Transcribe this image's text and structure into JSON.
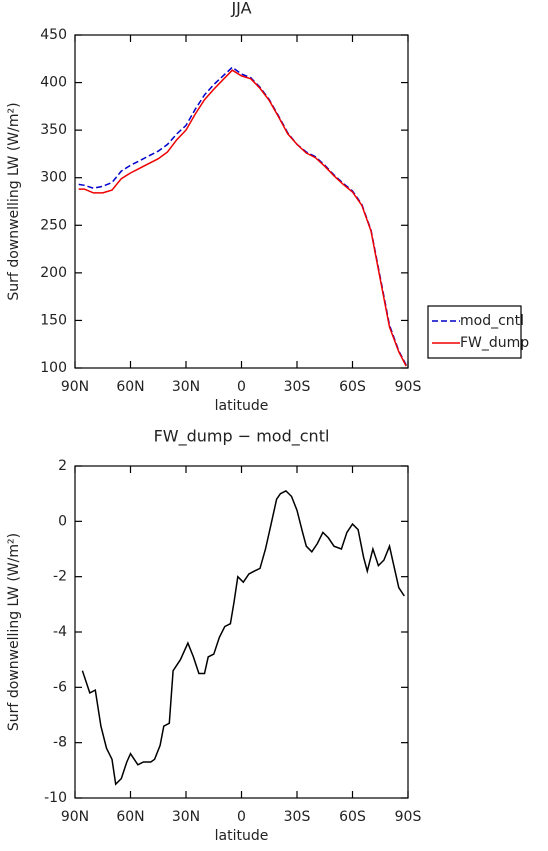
{
  "chart_data": [
    {
      "type": "line",
      "title": "JJA",
      "xlabel": "latitude",
      "ylabel": "Surf downwelling LW (W/m²)",
      "x": [
        88,
        85,
        80,
        75,
        70,
        65,
        60,
        55,
        50,
        45,
        40,
        35,
        30,
        25,
        20,
        15,
        10,
        5,
        0,
        -5,
        -10,
        -15,
        -20,
        -25,
        -30,
        -35,
        -40,
        -45,
        -50,
        -55,
        -60,
        -65,
        -70,
        -75,
        -80,
        -85,
        -89
      ],
      "series": [
        {
          "name": "mod_cntl",
          "color": "#0000cc",
          "linestyle": "dashed",
          "values": [
            293,
            292,
            289,
            291,
            295,
            307,
            313,
            318,
            323,
            328,
            335,
            346,
            355,
            372,
            387,
            398,
            407,
            416,
            409,
            405,
            395,
            382,
            365,
            347,
            335,
            327,
            322,
            313,
            303,
            294,
            286,
            272,
            245,
            195,
            145,
            118,
            103
          ]
        },
        {
          "name": "FW_dump",
          "color": "#ee0000",
          "linestyle": "solid",
          "values": [
            288,
            288,
            284,
            284,
            287,
            299,
            305,
            310,
            315,
            320,
            327,
            340,
            350,
            367,
            382,
            393,
            403,
            413,
            407,
            404,
            394,
            381,
            364,
            346,
            335,
            326,
            321,
            312,
            302,
            293,
            285,
            271,
            244,
            193,
            143,
            117,
            102
          ]
        }
      ],
      "xlim": [
        90,
        -90
      ],
      "xticks": [
        {
          "value": 90,
          "label": "90N"
        },
        {
          "value": 60,
          "label": "60N"
        },
        {
          "value": 30,
          "label": "30N"
        },
        0,
        {
          "value": -30,
          "label": "30S"
        },
        {
          "value": -60,
          "label": "60S"
        },
        {
          "value": -90,
          "label": "90S"
        }
      ],
      "ylim": [
        100,
        450
      ],
      "yticks": [
        100,
        150,
        200,
        250,
        300,
        350,
        400,
        450
      ],
      "legend": "right"
    },
    {
      "type": "line",
      "title": "FW_dump − mod_cntl",
      "xlabel": "latitude",
      "ylabel": "Surf downwelling LW (W/m²)",
      "x": [
        86,
        82,
        79,
        76,
        73,
        70,
        68,
        65,
        62,
        60,
        56,
        53,
        49,
        47,
        44,
        42,
        39,
        37,
        33,
        29,
        26,
        23,
        20,
        18,
        15,
        12,
        9,
        6,
        4,
        2,
        -1,
        -4,
        -7,
        -10,
        -13,
        -16,
        -19,
        -21,
        -24,
        -27,
        -30,
        -33,
        -35,
        -38,
        -41,
        -44,
        -47,
        -50,
        -54,
        -57,
        -60,
        -63,
        -66,
        -68,
        -71,
        -74,
        -77,
        -80,
        -82,
        -85,
        -88
      ],
      "series": [
        {
          "name": "FW_dump − mod_cntl",
          "color": "#000000",
          "linestyle": "solid",
          "values": [
            -5.4,
            -6.2,
            -6.1,
            -7.4,
            -8.2,
            -8.6,
            -9.5,
            -9.3,
            -8.7,
            -8.4,
            -8.8,
            -8.7,
            -8.7,
            -8.6,
            -8.1,
            -7.4,
            -7.3,
            -5.4,
            -5.0,
            -4.4,
            -4.9,
            -5.5,
            -5.5,
            -4.9,
            -4.8,
            -4.2,
            -3.8,
            -3.7,
            -2.9,
            -2.0,
            -2.2,
            -1.9,
            -1.8,
            -1.7,
            -1.0,
            -0.1,
            0.8,
            1.0,
            1.1,
            0.9,
            0.4,
            -0.4,
            -0.9,
            -1.1,
            -0.8,
            -0.4,
            -0.6,
            -0.9,
            -1.0,
            -0.4,
            -0.1,
            -0.3,
            -1.3,
            -1.8,
            -1.0,
            -1.6,
            -1.4,
            -0.9,
            -1.5,
            -2.4,
            -2.7
          ]
        }
      ],
      "xlim": [
        90,
        -90
      ],
      "xticks": [
        {
          "value": 90,
          "label": "90N"
        },
        {
          "value": 60,
          "label": "60N"
        },
        {
          "value": 30,
          "label": "30N"
        },
        0,
        {
          "value": -30,
          "label": "30S"
        },
        {
          "value": -60,
          "label": "60S"
        },
        {
          "value": -90,
          "label": "90S"
        }
      ],
      "ylim": [
        -10,
        2
      ],
      "yticks": [
        -10,
        -8,
        -6,
        -4,
        -2,
        0,
        2
      ]
    }
  ]
}
